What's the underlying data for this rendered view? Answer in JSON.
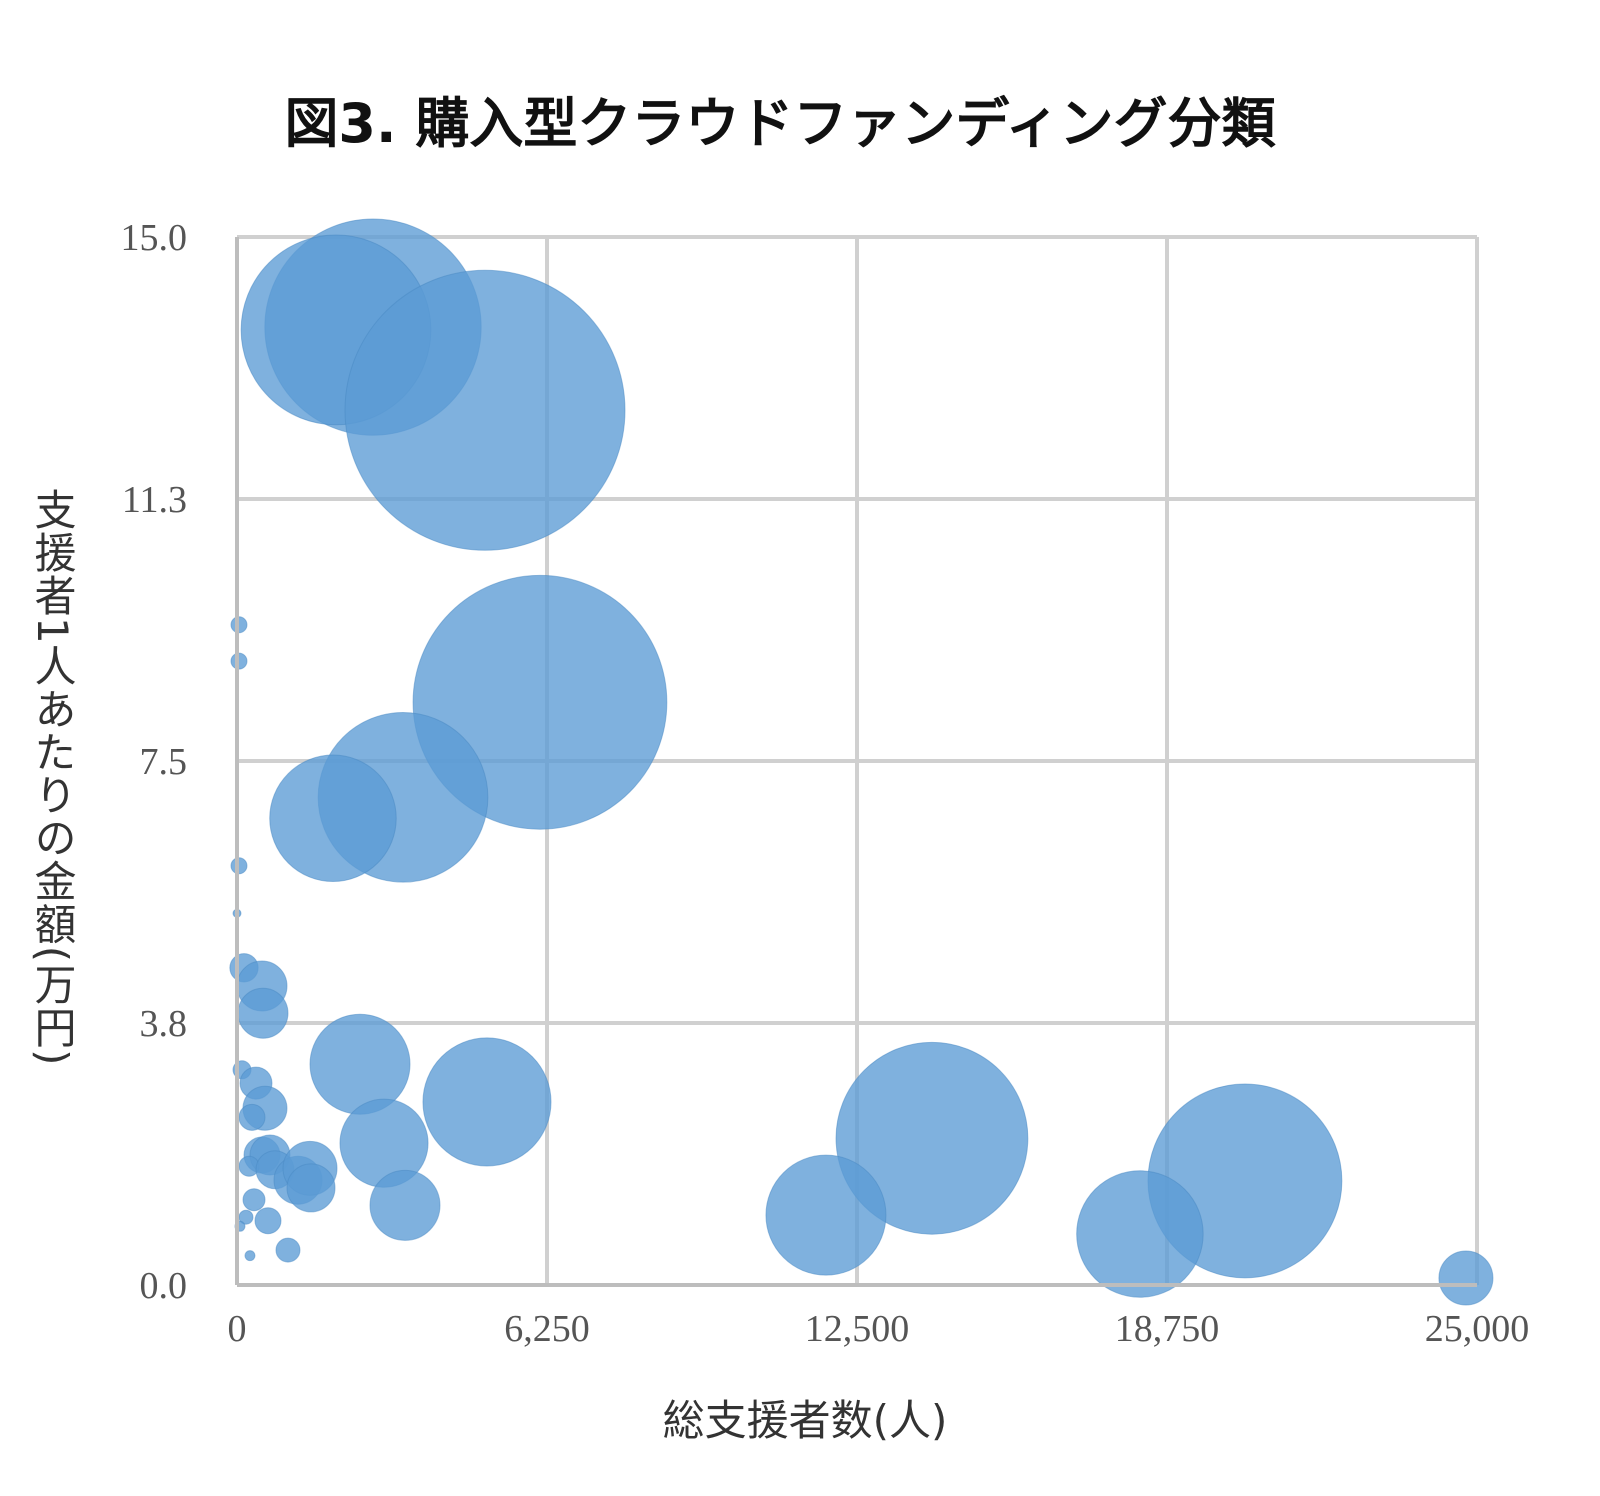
{
  "chart_data": {
    "type": "scatter",
    "subtype": "bubble",
    "title": "図3. 購入型クラウドファンディング分類",
    "xlabel": "総支援者数(人)",
    "ylabel": "支援者1人あたりの金額(万円)",
    "xlim": [
      0,
      25000
    ],
    "ylim": [
      0,
      15
    ],
    "xticks": [
      "0",
      "6,250",
      "12,500",
      "18,750",
      "25,000"
    ],
    "xtick_values": [
      0,
      6250,
      12500,
      18750,
      25000
    ],
    "yticks": [
      "0.0",
      "3.8",
      "7.5",
      "11.3",
      "15.0"
    ],
    "ytick_values": [
      0,
      3.75,
      7.5,
      11.25,
      15
    ],
    "grid": true,
    "color": "#5b9bd5",
    "points": [
      {
        "x": 2742,
        "y": 13.71,
        "size": 117
      },
      {
        "x": 1996,
        "y": 13.67,
        "size": 90
      },
      {
        "x": 5000,
        "y": 12.52,
        "size": 196
      },
      {
        "x": 6108,
        "y": 8.34,
        "size": 161
      },
      {
        "x": 3347,
        "y": 6.98,
        "size": 72
      },
      {
        "x": 1935,
        "y": 6.68,
        "size": 40
      },
      {
        "x": 40,
        "y": 9.45,
        "size": 0.64
      },
      {
        "x": 40,
        "y": 8.93,
        "size": 0.64
      },
      {
        "x": 40,
        "y": 6.0,
        "size": 0.64
      },
      {
        "x": 0,
        "y": 5.32,
        "size": 0.16
      },
      {
        "x": 141,
        "y": 4.54,
        "size": 2
      },
      {
        "x": 504,
        "y": 4.28,
        "size": 6.25
      },
      {
        "x": 524,
        "y": 3.89,
        "size": 6.25
      },
      {
        "x": 2480,
        "y": 3.16,
        "size": 25
      },
      {
        "x": 5040,
        "y": 2.62,
        "size": 41
      },
      {
        "x": 2964,
        "y": 2.03,
        "size": 19.4
      },
      {
        "x": 3387,
        "y": 1.14,
        "size": 12.25
      },
      {
        "x": 14011,
        "y": 2.1,
        "size": 92
      },
      {
        "x": 11874,
        "y": 1.0,
        "size": 36
      },
      {
        "x": 20321,
        "y": 1.49,
        "size": 94
      },
      {
        "x": 18204,
        "y": 0.73,
        "size": 40
      },
      {
        "x": 24777,
        "y": 0.1,
        "size": 7.3
      },
      {
        "x": 101,
        "y": 3.08,
        "size": 0.81
      },
      {
        "x": 383,
        "y": 2.89,
        "size": 2.56
      },
      {
        "x": 564,
        "y": 2.53,
        "size": 4.84
      },
      {
        "x": 302,
        "y": 2.4,
        "size": 1.69
      },
      {
        "x": 504,
        "y": 1.86,
        "size": 3.24
      },
      {
        "x": 665,
        "y": 1.86,
        "size": 4
      },
      {
        "x": 242,
        "y": 1.7,
        "size": 1
      },
      {
        "x": 766,
        "y": 1.65,
        "size": 3.61
      },
      {
        "x": 1230,
        "y": 1.5,
        "size": 5.76
      },
      {
        "x": 1472,
        "y": 1.67,
        "size": 7.29
      },
      {
        "x": 1492,
        "y": 1.39,
        "size": 5.76
      },
      {
        "x": 343,
        "y": 1.22,
        "size": 1.21
      },
      {
        "x": 181,
        "y": 0.97,
        "size": 0.49
      },
      {
        "x": 625,
        "y": 0.92,
        "size": 1.69
      },
      {
        "x": 60,
        "y": 0.84,
        "size": 0.25
      },
      {
        "x": 1028,
        "y": 0.5,
        "size": 1.44
      },
      {
        "x": 262,
        "y": 0.42,
        "size": 0.25
      }
    ]
  }
}
